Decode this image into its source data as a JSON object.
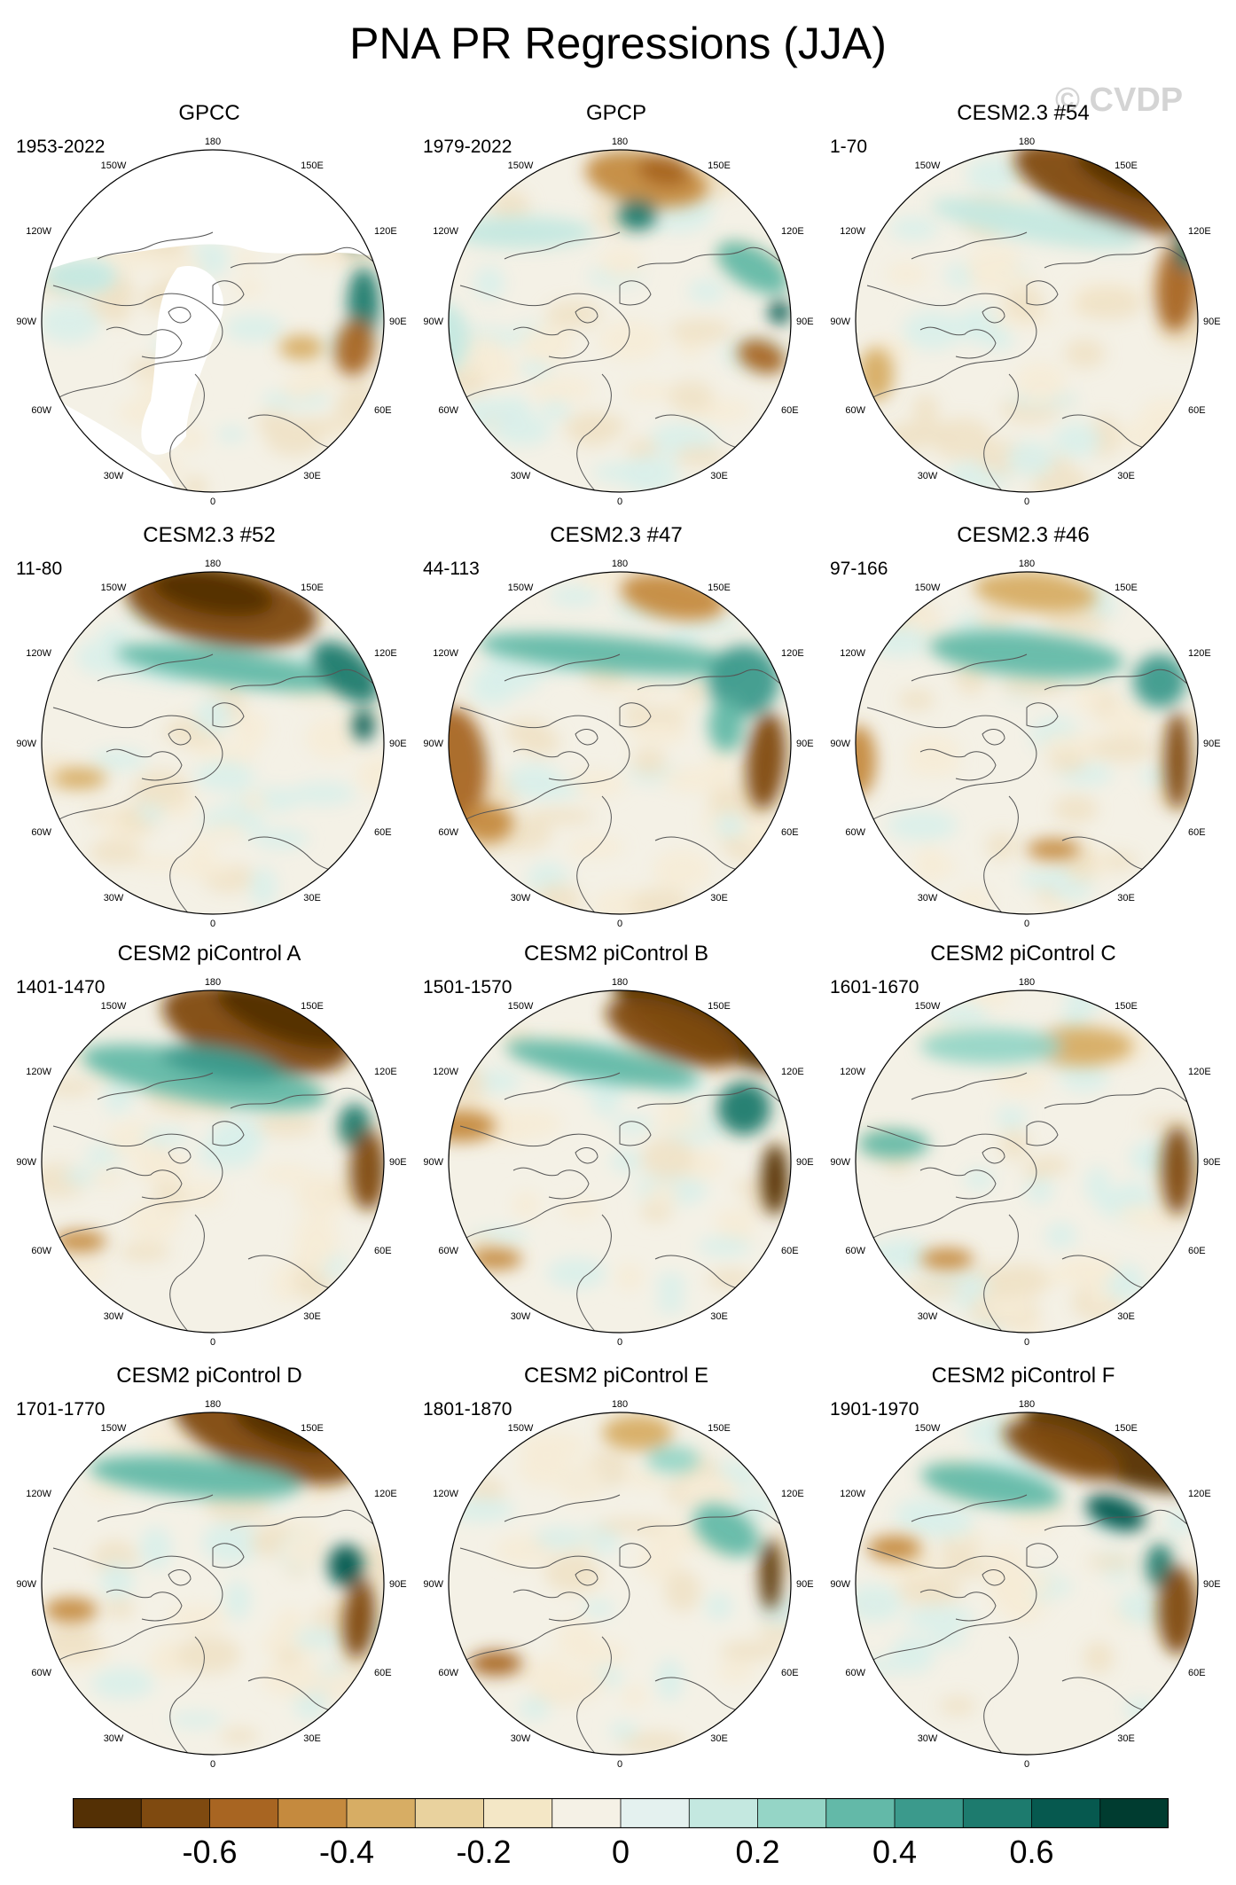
{
  "title": "PNA PR Regressions (JJA)",
  "watermark": "© CVDP",
  "panels": [
    {
      "name": "GPCC",
      "years": "1953-2022",
      "masked": true
    },
    {
      "name": "GPCP",
      "years": "1979-2022"
    },
    {
      "name": "CESM2.3 #54",
      "years": "1-70"
    },
    {
      "name": "CESM2.3 #52",
      "years": "11-80"
    },
    {
      "name": "CESM2.3 #47",
      "years": "44-113"
    },
    {
      "name": "CESM2.3 #46",
      "years": "97-166"
    },
    {
      "name": "CESM2 piControl A",
      "years": "1401-1470"
    },
    {
      "name": "CESM2 piControl B",
      "years": "1501-1570"
    },
    {
      "name": "CESM2 piControl C",
      "years": "1601-1670"
    },
    {
      "name": "CESM2 piControl D",
      "years": "1701-1770"
    },
    {
      "name": "CESM2 piControl E",
      "years": "1801-1870"
    },
    {
      "name": "CESM2 piControl F",
      "years": "1901-1970"
    }
  ],
  "lon_labels": {
    "top": "180",
    "bottom": "0",
    "left": "90W",
    "right": "90E",
    "upper_left": "150W",
    "upper_right": "150E",
    "mid_upper_left": "120W",
    "mid_upper_right": "120E",
    "mid_lower_left": "60W",
    "mid_lower_right": "60E",
    "lower_left": "30W",
    "lower_right": "30E"
  },
  "colorbar": {
    "colors": [
      "#543005",
      "#7f4a10",
      "#a86522",
      "#c58a3e",
      "#d7ad64",
      "#e9d29e",
      "#f4e7c6",
      "#f5f1e6",
      "#e4f1ef",
      "#c4e8e0",
      "#95d5c6",
      "#63b9a8",
      "#3b9a8c",
      "#1d7b6e",
      "#06594f",
      "#003c30"
    ],
    "tick_labels": [
      "-0.6",
      "-0.4",
      "-0.2",
      "0",
      "0.2",
      "0.4",
      "0.6"
    ]
  }
}
